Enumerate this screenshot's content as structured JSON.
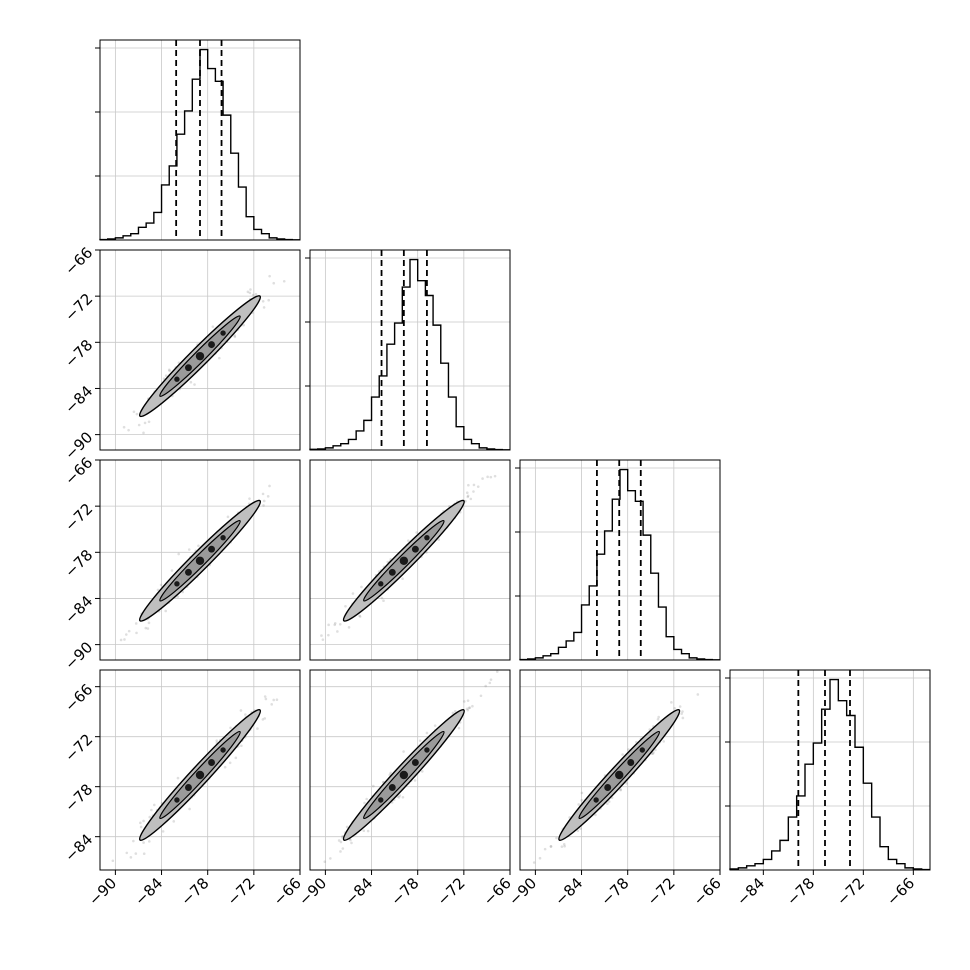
{
  "chart_data": {
    "type": "corner",
    "title": "",
    "n_params": 4,
    "scatter_ticks": [
      "−90",
      "−84",
      "−78",
      "−72",
      "−66"
    ],
    "scatter_tick_values": [
      -90,
      -84,
      -78,
      -72,
      -66
    ],
    "axis_ranges": [
      [
        -92,
        -66
      ],
      [
        -92,
        -66
      ],
      [
        -92,
        -66
      ],
      [
        -88,
        -64
      ]
    ],
    "quantiles": [
      {
        "param": 1,
        "lower": -82.1,
        "median": -79.0,
        "upper": -76.2
      },
      {
        "param": 2,
        "lower": -82.7,
        "median": -79.8,
        "upper": -76.8
      },
      {
        "param": 3,
        "lower": -82.0,
        "median": -79.1,
        "upper": -76.3
      },
      {
        "param": 4,
        "lower": -79.8,
        "median": -76.6,
        "upper": -73.6
      }
    ],
    "histograms": [
      {
        "param": 1,
        "bin_edges": [
          -92,
          -91,
          -90,
          -89,
          -88,
          -87,
          -86,
          -85,
          -84,
          -83,
          -82,
          -81,
          -80,
          -79,
          -78,
          -77,
          -76,
          -75,
          -74,
          -73,
          -72,
          -71,
          -70,
          -69,
          -68,
          -67,
          -66
        ],
        "counts": [
          0.2,
          0.5,
          1,
          2,
          3,
          6,
          8,
          13,
          26,
          35,
          50,
          61,
          76,
          90,
          81,
          75,
          59,
          41,
          25,
          11,
          5,
          3,
          1,
          0.5,
          0.2,
          0.1
        ]
      },
      {
        "param": 2,
        "bin_edges": [
          -92,
          -91,
          -90,
          -89,
          -88,
          -87,
          -86,
          -85,
          -84,
          -83,
          -82,
          -81,
          -80,
          -79,
          -78,
          -77,
          -76,
          -75,
          -74,
          -73,
          -72,
          -71,
          -70,
          -69,
          -68,
          -67,
          -66
        ],
        "counts": [
          0.3,
          0.5,
          1,
          2,
          3,
          5,
          9,
          14,
          25,
          35,
          50,
          60,
          77,
          90,
          80,
          73,
          59,
          41,
          25,
          11,
          5,
          3,
          1,
          0.5,
          0.2,
          0.1
        ]
      },
      {
        "param": 3,
        "bin_edges": [
          -92,
          -91,
          -90,
          -89,
          -88,
          -87,
          -86,
          -85,
          -84,
          -83,
          -82,
          -81,
          -80,
          -79,
          -78,
          -77,
          -76,
          -75,
          -74,
          -73,
          -72,
          -71,
          -70,
          -69,
          -68,
          -67,
          -66
        ],
        "counts": [
          0.2,
          0.5,
          1,
          2,
          3,
          6,
          9,
          13,
          26,
          35,
          50,
          61,
          76,
          90,
          80,
          75,
          59,
          41,
          25,
          11,
          5,
          3,
          1,
          0.5,
          0.2,
          0.1
        ]
      },
      {
        "param": 4,
        "bin_edges": [
          -88,
          -87,
          -86,
          -85,
          -84,
          -83,
          -82,
          -81,
          -80,
          -79,
          -78,
          -77,
          -76,
          -75,
          -74,
          -73,
          -72,
          -71,
          -70,
          -69,
          -68,
          -67,
          -66,
          -65,
          -64
        ],
        "counts": [
          0.5,
          1,
          2,
          3,
          5,
          9,
          14,
          25,
          35,
          50,
          60,
          76,
          90,
          80,
          73,
          58,
          41,
          25,
          11,
          5,
          3,
          1,
          0.5,
          0.2
        ]
      }
    ],
    "pair_panels": [
      {
        "x_param": 1,
        "y_param": 2
      },
      {
        "x_param": 1,
        "y_param": 3
      },
      {
        "x_param": 2,
        "y_param": 3
      },
      {
        "x_param": 1,
        "y_param": 4
      },
      {
        "x_param": 2,
        "y_param": 4
      },
      {
        "x_param": 3,
        "y_param": 4
      }
    ],
    "grid": true,
    "colors": {
      "line": "#000000",
      "contour_fill": "#bfbfbf",
      "grid": "#c8c8c8",
      "points": "#808080"
    }
  }
}
